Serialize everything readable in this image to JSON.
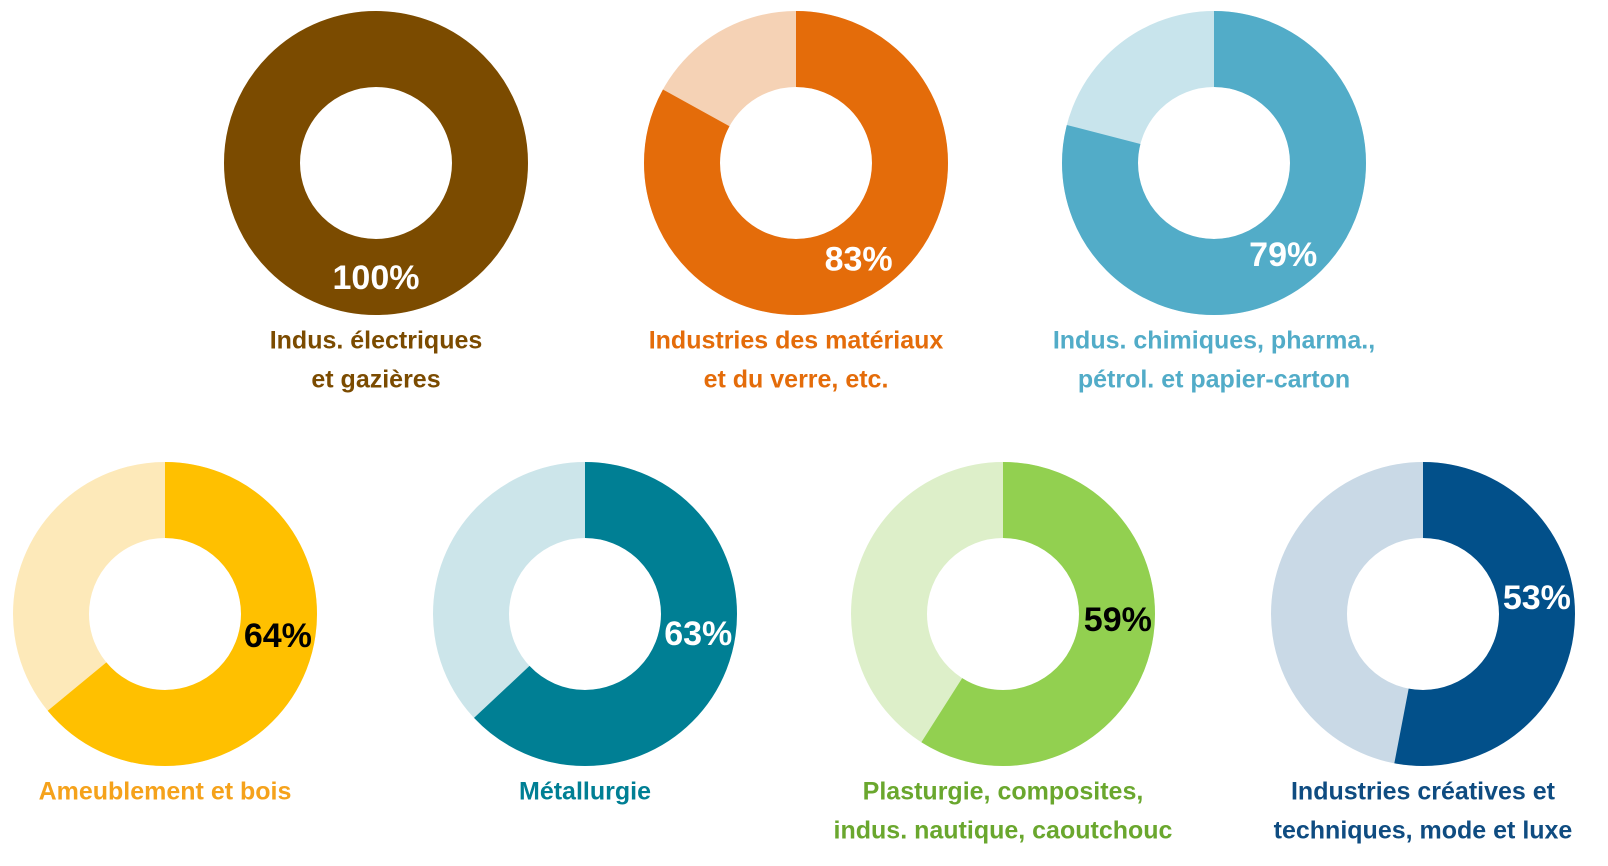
{
  "chart_data": [
    {
      "type": "donut",
      "title": [
        "Indus. électriques",
        "et gazières"
      ],
      "values": [
        100
      ],
      "value_labels": [
        "100%"
      ],
      "color": "#7b4b00",
      "track_color": "#f0e1cc",
      "label_color": "#ffffff",
      "title_color": "#7b4b00"
    },
    {
      "type": "donut",
      "title": [
        "Industries des matériaux",
        "et du verre, etc."
      ],
      "values": [
        83
      ],
      "value_labels": [
        "83%"
      ],
      "color": "#e46c0a",
      "track_color": "#f5d2b5",
      "label_color": "#ffffff",
      "title_color": "#e46c0a"
    },
    {
      "type": "donut",
      "title": [
        "Indus. chimiques, pharma.,",
        "pétrol. et papier-carton"
      ],
      "values": [
        79
      ],
      "value_labels": [
        "79%"
      ],
      "color": "#52acc8",
      "track_color": "#c8e4ec",
      "label_color": "#ffffff",
      "title_color": "#52acc8"
    },
    {
      "type": "donut",
      "title": [
        "Ameublement et bois"
      ],
      "values": [
        64
      ],
      "value_labels": [
        "64%"
      ],
      "color": "#ffc000",
      "track_color": "#fde9b9",
      "label_color": "#000000",
      "title_color": "#f5a21b"
    },
    {
      "type": "donut",
      "title": [
        "Métallurgie"
      ],
      "values": [
        63
      ],
      "value_labels": [
        "63%"
      ],
      "color": "#007f94",
      "track_color": "#cce5ea",
      "label_color": "#ffffff",
      "title_color": "#007f94"
    },
    {
      "type": "donut",
      "title": [
        "Plasturgie, composites,",
        "indus. nautique, caoutchouc"
      ],
      "values": [
        59
      ],
      "value_labels": [
        "59%"
      ],
      "color": "#92d050",
      "track_color": "#ddefc9",
      "label_color": "#000000",
      "title_color": "#6aa72e"
    },
    {
      "type": "donut",
      "title": [
        "Industries créatives et",
        "techniques, mode et luxe"
      ],
      "values": [
        53
      ],
      "value_labels": [
        "53%"
      ],
      "color": "#02508a",
      "track_color": "#c9d9e6",
      "label_color": "#ffffff",
      "title_color": "#0f4c81"
    }
  ]
}
